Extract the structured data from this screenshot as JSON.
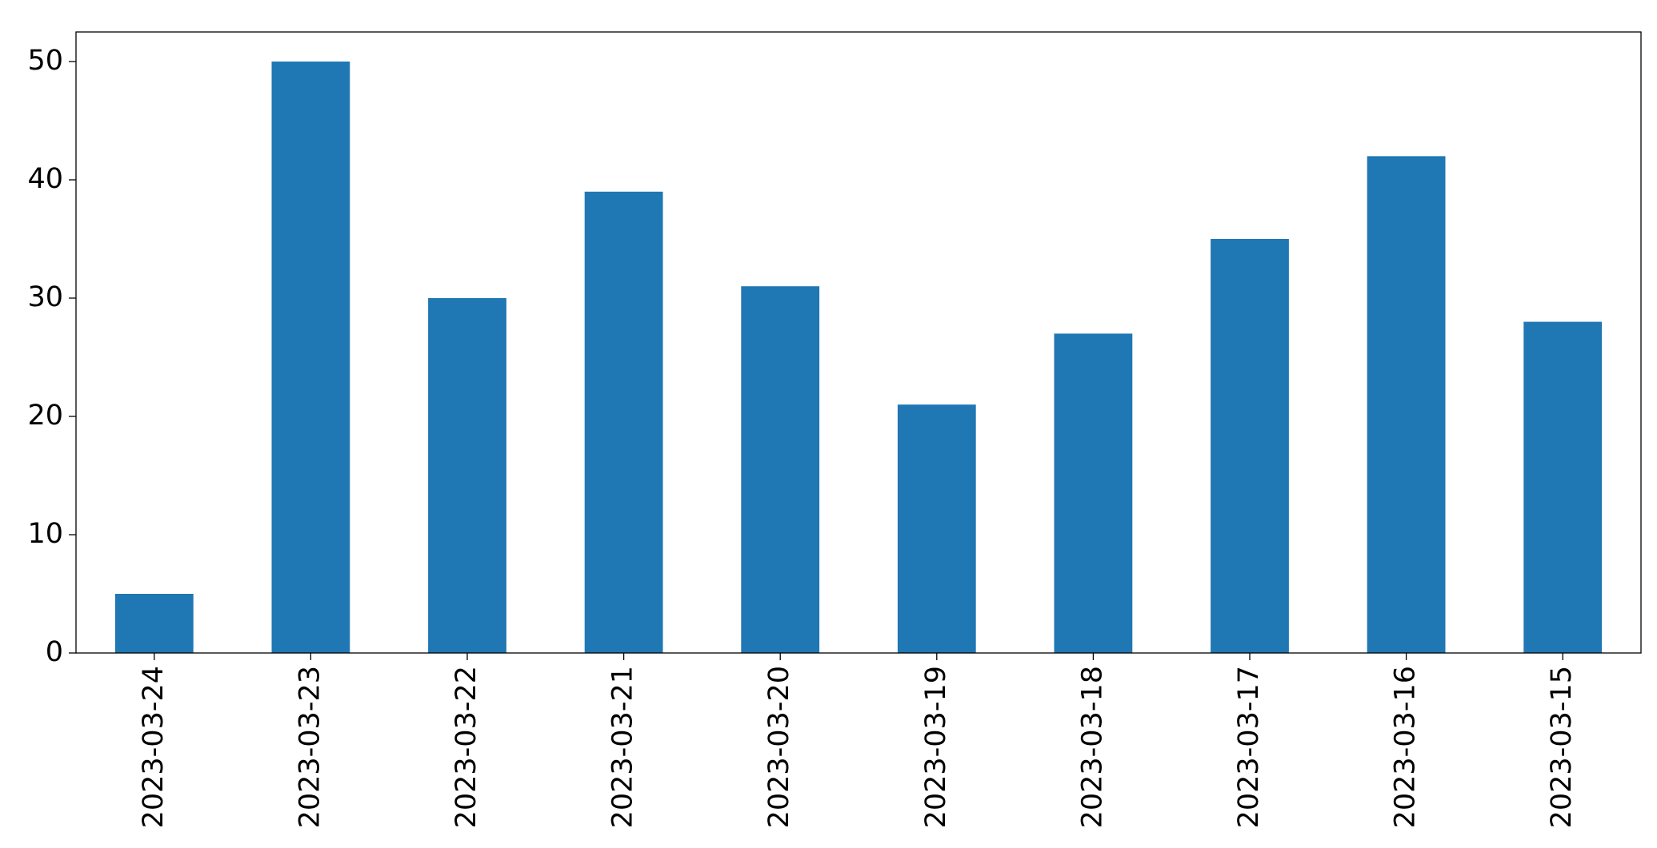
{
  "chart_data": {
    "type": "bar",
    "categories": [
      "2023-03-24",
      "2023-03-23",
      "2023-03-22",
      "2023-03-21",
      "2023-03-20",
      "2023-03-19",
      "2023-03-18",
      "2023-03-17",
      "2023-03-16",
      "2023-03-15"
    ],
    "values": [
      5,
      50,
      30,
      39,
      31,
      21,
      27,
      35,
      42,
      28
    ],
    "color": "#1f77b4",
    "ylim": [
      0,
      52.5
    ],
    "yticks": [
      0,
      10,
      20,
      30,
      40,
      50
    ],
    "grid": false
  }
}
